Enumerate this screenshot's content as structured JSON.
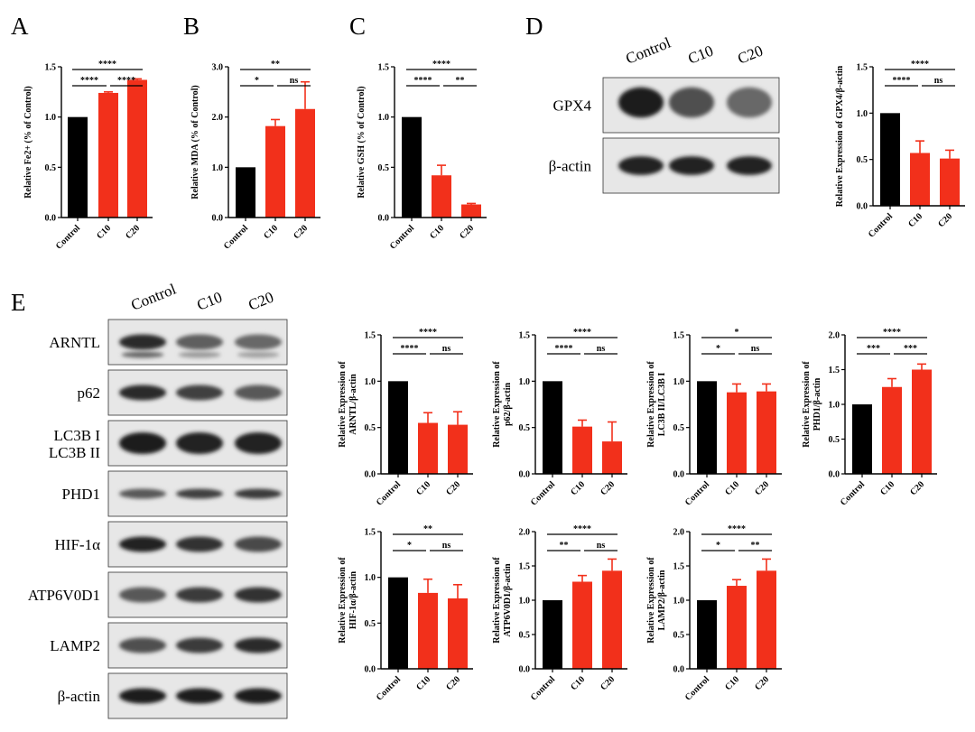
{
  "panel_letters": [
    "A",
    "B",
    "C",
    "D",
    "E"
  ],
  "colors": {
    "control": "#000000",
    "treated": "#f2301b"
  },
  "blot_D": {
    "lanes": [
      "Control",
      "C10",
      "C20"
    ],
    "rows": [
      {
        "label": "GPX4",
        "bands": [
          0.95,
          0.6,
          0.45
        ],
        "style": "gpx4"
      },
      {
        "label": "β-actin",
        "bands": [
          0.9,
          0.92,
          0.9
        ],
        "style": "band"
      }
    ]
  },
  "blot_E": {
    "lanes": [
      "Control",
      "C10",
      "C20"
    ],
    "rows": [
      {
        "label": "ARNTL",
        "bands": [
          0.85,
          0.5,
          0.45
        ],
        "style": "double"
      },
      {
        "label": "p62",
        "bands": [
          0.85,
          0.7,
          0.55
        ],
        "style": "band"
      },
      {
        "label": "LC3B I\nLC3B II",
        "bands": [
          0.95,
          0.9,
          0.9
        ],
        "style": "thick"
      },
      {
        "label": "PHD1",
        "bands": [
          0.55,
          0.7,
          0.75
        ],
        "style": "thin"
      },
      {
        "label": "HIF-1α",
        "bands": [
          0.9,
          0.8,
          0.65
        ],
        "style": "band"
      },
      {
        "label": "ATP6V0D1",
        "bands": [
          0.55,
          0.75,
          0.8
        ],
        "style": "band"
      },
      {
        "label": "LAMP2",
        "bands": [
          0.6,
          0.75,
          0.85
        ],
        "style": "band"
      },
      {
        "label": "β-actin",
        "bands": [
          0.95,
          0.95,
          0.95
        ],
        "style": "band"
      }
    ]
  },
  "chart_data": [
    {
      "id": "A",
      "type": "bar",
      "ylabel": "Relative Fe2+ (% of Control)",
      "categories": [
        "Control",
        "C10",
        "C20"
      ],
      "values": [
        1.0,
        1.24,
        1.37
      ],
      "errors": [
        0,
        0.01,
        0.01
      ],
      "ylim": [
        0,
        1.5
      ],
      "yticks": [
        "0.0",
        "0.5",
        "1.0",
        "1.5"
      ],
      "sig": [
        {
          "from": 0,
          "to": 1,
          "label": "****"
        },
        {
          "from": 1,
          "to": 2,
          "label": "****"
        },
        {
          "from": 0,
          "to": 2,
          "label": "****"
        }
      ]
    },
    {
      "id": "B",
      "type": "bar",
      "ylabel": "Relative MDA (% of Control)",
      "categories": [
        "Control",
        "C10",
        "C20"
      ],
      "values": [
        1.0,
        1.82,
        2.16
      ],
      "errors": [
        0,
        0.13,
        0.54
      ],
      "ylim": [
        0,
        3.0
      ],
      "yticks": [
        "0.0",
        "1.0",
        "2.0",
        "3.0"
      ],
      "sig": [
        {
          "from": 0,
          "to": 1,
          "label": "*"
        },
        {
          "from": 1,
          "to": 2,
          "label": "ns"
        },
        {
          "from": 0,
          "to": 2,
          "label": "**"
        }
      ]
    },
    {
      "id": "C",
      "type": "bar",
      "ylabel": "Relative GSH (% of Control)",
      "categories": [
        "Control",
        "C10",
        "C20"
      ],
      "values": [
        1.0,
        0.42,
        0.13
      ],
      "errors": [
        0,
        0.1,
        0.01
      ],
      "ylim": [
        0,
        1.5
      ],
      "yticks": [
        "0.0",
        "0.5",
        "1.0",
        "1.5"
      ],
      "sig": [
        {
          "from": 0,
          "to": 1,
          "label": "****"
        },
        {
          "from": 1,
          "to": 2,
          "label": "**"
        },
        {
          "from": 0,
          "to": 2,
          "label": "****"
        }
      ]
    },
    {
      "id": "D",
      "type": "bar",
      "ylabel": "Relative Expression of GPX4/β-actin",
      "categories": [
        "Control",
        "C10",
        "C20"
      ],
      "values": [
        1.0,
        0.57,
        0.51
      ],
      "errors": [
        0,
        0.13,
        0.09
      ],
      "ylim": [
        0,
        1.5
      ],
      "yticks": [
        "0.0",
        "0.5",
        "1.0",
        "1.5"
      ],
      "sig": [
        {
          "from": 0,
          "to": 1,
          "label": "****"
        },
        {
          "from": 1,
          "to": 2,
          "label": "ns"
        },
        {
          "from": 0,
          "to": 2,
          "label": "****"
        }
      ]
    },
    {
      "id": "E1",
      "type": "bar",
      "ylabel": "Relative Expression of ARNTL/β-actin",
      "categories": [
        "Control",
        "C10",
        "C20"
      ],
      "values": [
        1.0,
        0.55,
        0.53
      ],
      "errors": [
        0,
        0.11,
        0.14
      ],
      "ylim": [
        0,
        1.5
      ],
      "yticks": [
        "0.0",
        "0.5",
        "1.0",
        "1.5"
      ],
      "sig": [
        {
          "from": 0,
          "to": 1,
          "label": "****"
        },
        {
          "from": 1,
          "to": 2,
          "label": "ns"
        },
        {
          "from": 0,
          "to": 2,
          "label": "****"
        }
      ]
    },
    {
      "id": "E2",
      "type": "bar",
      "ylabel": "Relative Expression of p62/β-actin",
      "categories": [
        "Control",
        "C10",
        "C20"
      ],
      "values": [
        1.0,
        0.51,
        0.35
      ],
      "errors": [
        0,
        0.07,
        0.21
      ],
      "ylim": [
        0,
        1.5
      ],
      "yticks": [
        "0.0",
        "0.5",
        "1.0",
        "1.5"
      ],
      "sig": [
        {
          "from": 0,
          "to": 1,
          "label": "****"
        },
        {
          "from": 1,
          "to": 2,
          "label": "ns"
        },
        {
          "from": 0,
          "to": 2,
          "label": "****"
        }
      ]
    },
    {
      "id": "E3",
      "type": "bar",
      "ylabel": "Relative Expression of LC3B II/LC3B I",
      "categories": [
        "Control",
        "C10",
        "C20"
      ],
      "values": [
        1.0,
        0.88,
        0.89
      ],
      "errors": [
        0,
        0.09,
        0.08
      ],
      "ylim": [
        0,
        1.5
      ],
      "yticks": [
        "0.0",
        "0.5",
        "1.0",
        "1.5"
      ],
      "sig": [
        {
          "from": 0,
          "to": 1,
          "label": "*"
        },
        {
          "from": 1,
          "to": 2,
          "label": "ns"
        },
        {
          "from": 0,
          "to": 2,
          "label": "*"
        }
      ]
    },
    {
      "id": "E4",
      "type": "bar",
      "ylabel": "Relative Expression of PHD1/β-actin",
      "categories": [
        "Control",
        "C10",
        "C20"
      ],
      "values": [
        1.0,
        1.25,
        1.5
      ],
      "errors": [
        0,
        0.12,
        0.08
      ],
      "ylim": [
        0,
        2.0
      ],
      "yticks": [
        "0.0",
        "0.5",
        "1.0",
        "1.5",
        "2.0"
      ],
      "sig": [
        {
          "from": 0,
          "to": 1,
          "label": "***"
        },
        {
          "from": 1,
          "to": 2,
          "label": "***"
        },
        {
          "from": 0,
          "to": 2,
          "label": "****"
        }
      ]
    },
    {
      "id": "E5",
      "type": "bar",
      "ylabel": "Relative Expression of HIF-1α/β-actin",
      "categories": [
        "Control",
        "C10",
        "C20"
      ],
      "values": [
        1.0,
        0.83,
        0.77
      ],
      "errors": [
        0,
        0.15,
        0.15
      ],
      "ylim": [
        0,
        1.5
      ],
      "yticks": [
        "0.0",
        "0.5",
        "1.0",
        "1.5"
      ],
      "sig": [
        {
          "from": 0,
          "to": 1,
          "label": "*"
        },
        {
          "from": 1,
          "to": 2,
          "label": "ns"
        },
        {
          "from": 0,
          "to": 2,
          "label": "**"
        }
      ]
    },
    {
      "id": "E6",
      "type": "bar",
      "ylabel": "Relative Expression of ATP6V0D1/β-actin",
      "categories": [
        "Control",
        "C10",
        "C20"
      ],
      "values": [
        1.0,
        1.27,
        1.43
      ],
      "errors": [
        0,
        0.09,
        0.17
      ],
      "ylim": [
        0,
        2.0
      ],
      "yticks": [
        "0.0",
        "0.5",
        "1.0",
        "1.5",
        "2.0"
      ],
      "sig": [
        {
          "from": 0,
          "to": 1,
          "label": "**"
        },
        {
          "from": 1,
          "to": 2,
          "label": "ns"
        },
        {
          "from": 0,
          "to": 2,
          "label": "****"
        }
      ]
    },
    {
      "id": "E7",
      "type": "bar",
      "ylabel": "Relative Expression of LAMP2/β-actin",
      "categories": [
        "Control",
        "C10",
        "C20"
      ],
      "values": [
        1.0,
        1.21,
        1.43
      ],
      "errors": [
        0,
        0.09,
        0.17
      ],
      "ylim": [
        0,
        2.0
      ],
      "yticks": [
        "0.0",
        "0.5",
        "1.0",
        "1.5",
        "2.0"
      ],
      "sig": [
        {
          "from": 0,
          "to": 1,
          "label": "*"
        },
        {
          "from": 1,
          "to": 2,
          "label": "**"
        },
        {
          "from": 0,
          "to": 2,
          "label": "****"
        }
      ]
    }
  ]
}
